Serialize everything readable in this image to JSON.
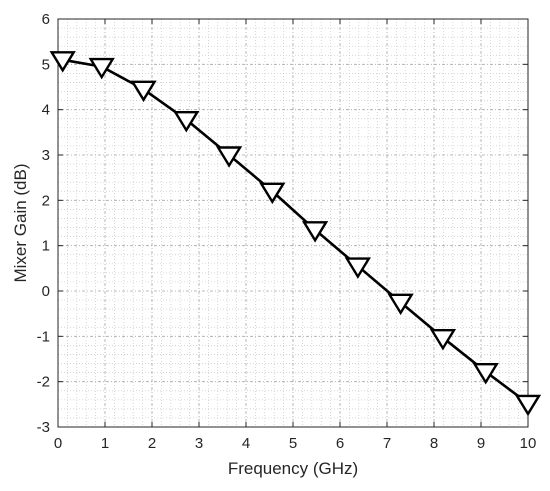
{
  "chart_data": {
    "type": "line",
    "xlabel": "Frequency (GHz)",
    "ylabel": "Mixer Gain (dB)",
    "xlim": [
      0,
      10
    ],
    "ylim": [
      -3,
      6
    ],
    "xticks": [
      0,
      1,
      2,
      3,
      4,
      5,
      6,
      7,
      8,
      9,
      10
    ],
    "yticks": [
      -3,
      -2,
      -1,
      0,
      1,
      2,
      3,
      4,
      5,
      6
    ],
    "grid": "major and minor",
    "series": [
      {
        "marker": "down-triangle",
        "color": "#000000",
        "x": [
          0.1,
          0.93,
          1.82,
          2.73,
          3.64,
          4.56,
          5.47,
          6.38,
          7.29,
          8.19,
          9.1,
          10.0
        ],
        "y": [
          5.1,
          4.95,
          4.45,
          3.78,
          3.0,
          2.2,
          1.35,
          0.55,
          -0.25,
          -1.03,
          -1.78,
          -2.48
        ]
      }
    ]
  }
}
